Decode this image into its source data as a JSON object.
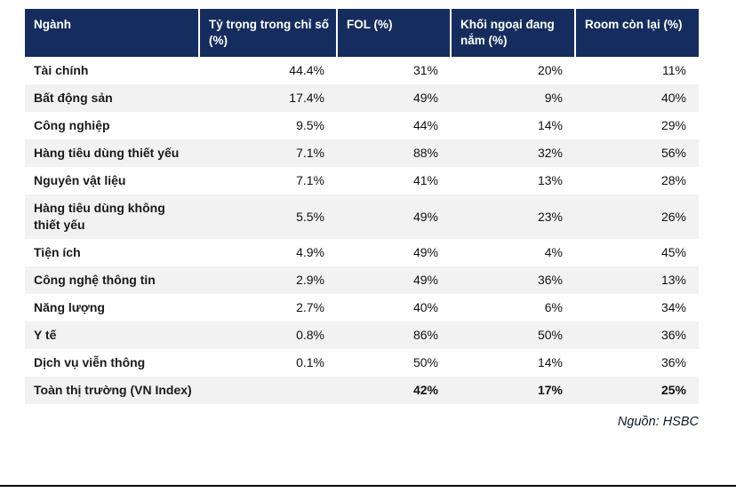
{
  "chart_data": {
    "type": "table",
    "title": "",
    "columns": [
      "Ngành",
      "Tỷ trọng trong chỉ số (%)",
      "FOL (%)",
      "Khối ngoại đang nắm (%)",
      "Room còn lại (%)"
    ],
    "rows": [
      [
        "Tài chính",
        "44.4%",
        "31%",
        "20%",
        "11%"
      ],
      [
        "Bất động sản",
        "17.4%",
        "49%",
        "9%",
        "40%"
      ],
      [
        "Công nghiệp",
        "9.5%",
        "44%",
        "14%",
        "29%"
      ],
      [
        "Hàng tiêu dùng thiết yếu",
        "7.1%",
        "88%",
        "32%",
        "56%"
      ],
      [
        "Nguyên vật liệu",
        "7.1%",
        "41%",
        "13%",
        "28%"
      ],
      [
        "Hàng tiêu dùng không thiết yếu",
        "5.5%",
        "49%",
        "23%",
        "26%"
      ],
      [
        "Tiện ích",
        "4.9%",
        "49%",
        "4%",
        "45%"
      ],
      [
        "Công nghệ thông tin",
        "2.9%",
        "49%",
        "36%",
        "13%"
      ],
      [
        "Năng lượng",
        "2.7%",
        "40%",
        "6%",
        "34%"
      ],
      [
        "Y tế",
        "0.8%",
        "86%",
        "50%",
        "36%"
      ],
      [
        "Dịch vụ viễn thông",
        "0.1%",
        "50%",
        "14%",
        "36%"
      ],
      [
        "Toàn thị trường (VN Index)",
        "",
        "42%",
        "17%",
        "25%"
      ]
    ],
    "total_row_label": "Toàn thị trường (VN Index)",
    "source": "Nguồn: HSBC"
  },
  "colors": {
    "header_bg": "#152D5E",
    "header_text": "#FFFFFF",
    "alt_row_bg": "#F2F2F2",
    "body_text": "#111111",
    "bottom_rule": "#000000"
  }
}
